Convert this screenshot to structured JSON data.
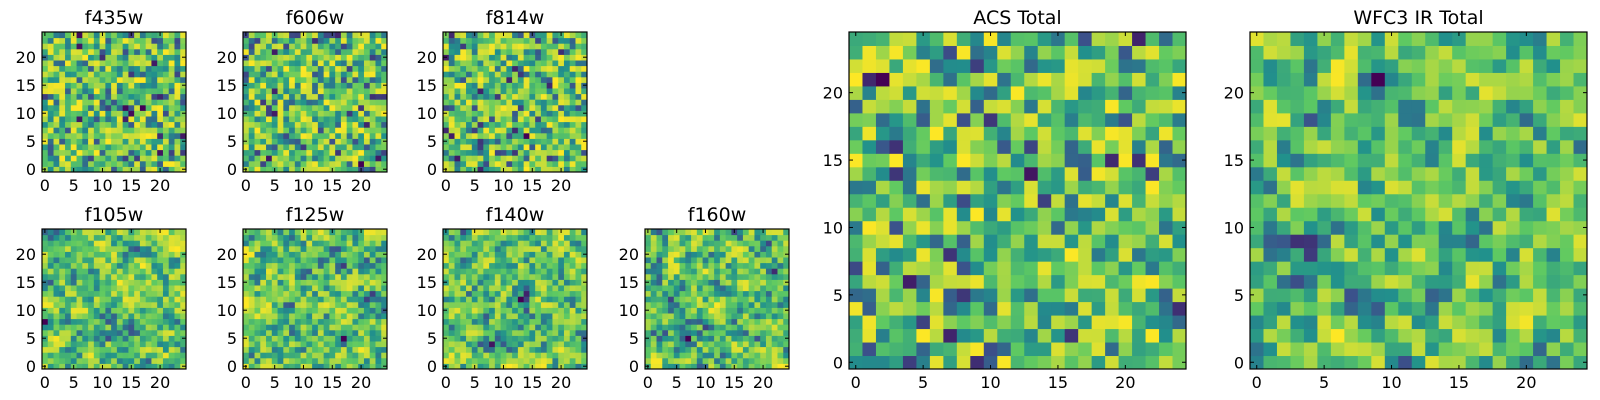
{
  "chart_data": [
    {
      "type": "heatmap",
      "title": "f435w",
      "xticks": [
        "0",
        "5",
        "10",
        "15",
        "20"
      ],
      "yticks": [
        "0",
        "5",
        "10",
        "15",
        "20"
      ],
      "xlim": [
        -0.5,
        24.5
      ],
      "ylim": [
        -0.5,
        24.5
      ],
      "grid_size": 25,
      "smooth": 0
    },
    {
      "type": "heatmap",
      "title": "f606w",
      "xticks": [
        "0",
        "5",
        "10",
        "15",
        "20"
      ],
      "yticks": [
        "0",
        "5",
        "10",
        "15",
        "20"
      ],
      "xlim": [
        -0.5,
        24.5
      ],
      "ylim": [
        -0.5,
        24.5
      ],
      "grid_size": 25,
      "smooth": 0
    },
    {
      "type": "heatmap",
      "title": "f814w",
      "xticks": [
        "0",
        "5",
        "10",
        "15",
        "20"
      ],
      "yticks": [
        "0",
        "5",
        "10",
        "15",
        "20"
      ],
      "xlim": [
        -0.5,
        24.5
      ],
      "ylim": [
        -0.5,
        24.5
      ],
      "grid_size": 25,
      "smooth": 0
    },
    {
      "type": "heatmap",
      "title": "f105w",
      "xticks": [
        "0",
        "5",
        "10",
        "15",
        "20"
      ],
      "yticks": [
        "0",
        "5",
        "10",
        "15",
        "20"
      ],
      "xlim": [
        -0.5,
        24.5
      ],
      "ylim": [
        -0.5,
        24.5
      ],
      "grid_size": 25,
      "smooth": 1
    },
    {
      "type": "heatmap",
      "title": "f125w",
      "xticks": [
        "0",
        "5",
        "10",
        "15",
        "20"
      ],
      "yticks": [
        "0",
        "5",
        "10",
        "15",
        "20"
      ],
      "xlim": [
        -0.5,
        24.5
      ],
      "ylim": [
        -0.5,
        24.5
      ],
      "grid_size": 25,
      "smooth": 1
    },
    {
      "type": "heatmap",
      "title": "f140w",
      "xticks": [
        "0",
        "5",
        "10",
        "15",
        "20"
      ],
      "yticks": [
        "0",
        "5",
        "10",
        "15",
        "20"
      ],
      "xlim": [
        -0.5,
        24.5
      ],
      "ylim": [
        -0.5,
        24.5
      ],
      "grid_size": 25,
      "smooth": 1
    },
    {
      "type": "heatmap",
      "title": "f160w",
      "xticks": [
        "0",
        "5",
        "10",
        "15",
        "20"
      ],
      "yticks": [
        "0",
        "5",
        "10",
        "15",
        "20"
      ],
      "xlim": [
        -0.5,
        24.5
      ],
      "ylim": [
        -0.5,
        24.5
      ],
      "grid_size": 25,
      "smooth": 1
    },
    {
      "type": "heatmap",
      "title": "ACS Total",
      "xticks": [
        "0",
        "5",
        "10",
        "15",
        "20"
      ],
      "yticks": [
        "0",
        "5",
        "10",
        "15",
        "20"
      ],
      "xlim": [
        -0.5,
        24.5
      ],
      "ylim": [
        -0.5,
        24.5
      ],
      "grid_size": 25,
      "smooth": 0
    },
    {
      "type": "heatmap",
      "title": "WFC3 IR Total",
      "xticks": [
        "0",
        "5",
        "10",
        "15",
        "20"
      ],
      "yticks": [
        "0",
        "5",
        "10",
        "15",
        "20"
      ],
      "xlim": [
        -0.5,
        24.5
      ],
      "ylim": [
        -0.5,
        24.5
      ],
      "grid_size": 25,
      "smooth": 1
    }
  ],
  "colormap": [
    "#440154",
    "#3b528b",
    "#21918c",
    "#5ec962",
    "#fde725"
  ]
}
